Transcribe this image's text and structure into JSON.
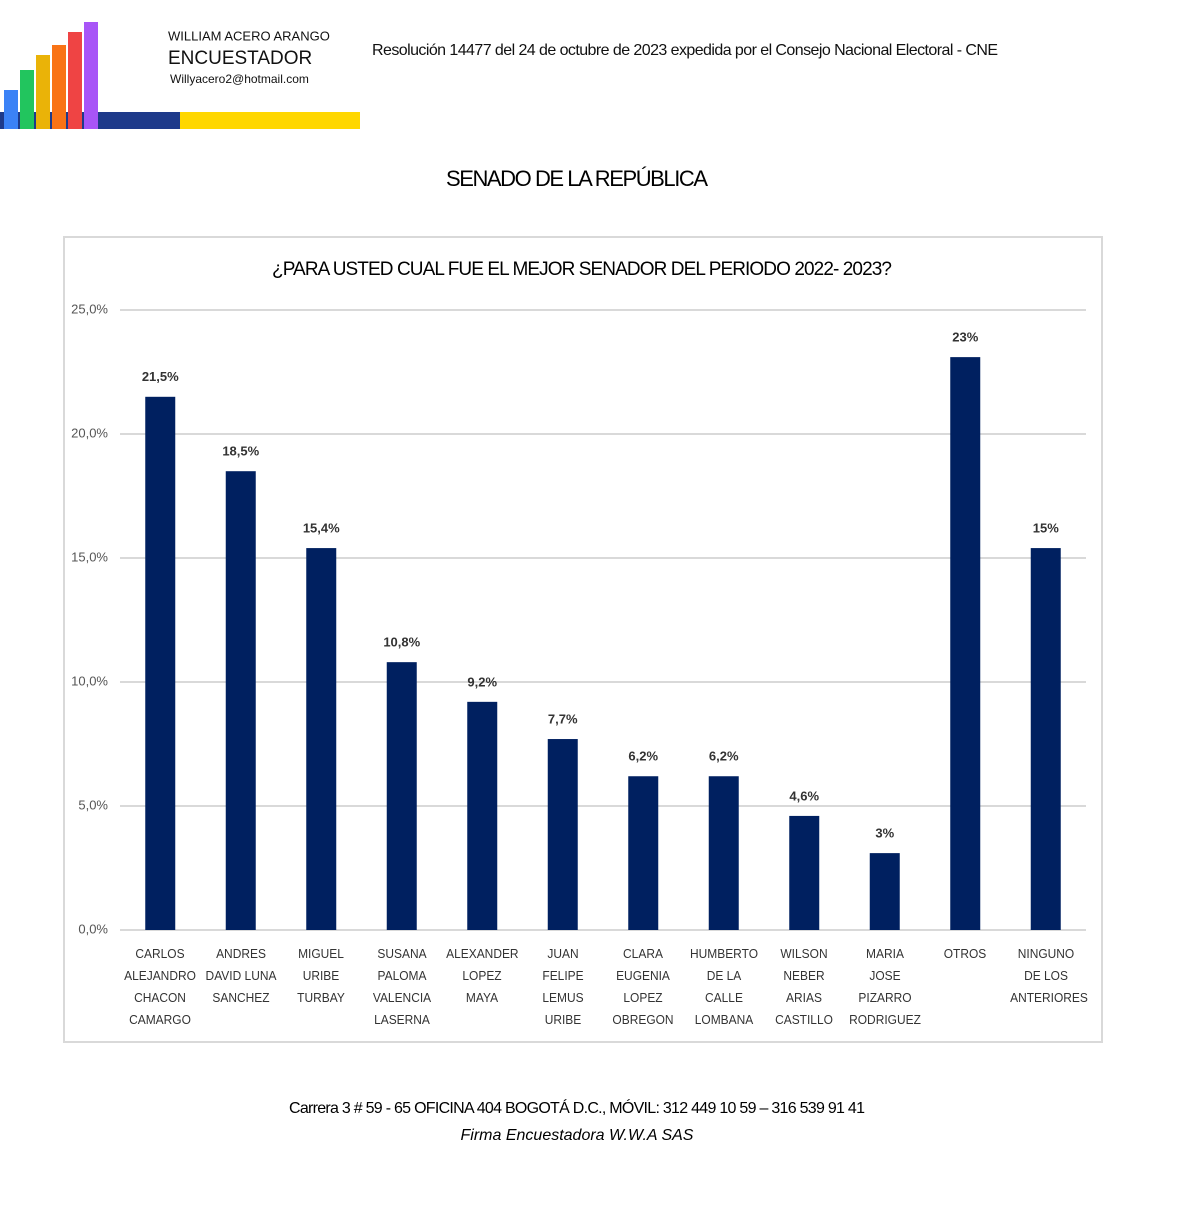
{
  "header": {
    "name": "WILLIAM ACERO ARANGO",
    "role": "ENCUESTADOR",
    "email": "Willyacero2@hotmail.com",
    "resolution": "Resolución 14477 del 24 de octubre de 2023 expedida por el Consejo Nacional Electoral - CNE"
  },
  "section_title": "SENADO DE LA REPÚBLICA",
  "chart_data": {
    "type": "bar",
    "title": "¿PARA USTED CUAL FUE EL MEJOR SENADOR DEL PERIODO 2022- 2023?",
    "categories": [
      "CARLOS ALEJANDRO CHACON CAMARGO",
      "ANDRES DAVID LUNA SANCHEZ",
      "MIGUEL URIBE TURBAY",
      "SUSANA PALOMA VALENCIA LASERNA",
      "ALEXANDER LOPEZ MAYA",
      "JUAN FELIPE LEMUS URIBE",
      "CLARA EUGENIA LOPEZ OBREGON",
      "HUMBERTO DE LA CALLE LOMBANA",
      "WILSON NEBER ARIAS CASTILLO",
      "MARIA JOSE PIZARRO RODRIGUEZ",
      "OTROS",
      "NINGUNO DE LOS ANTERIORES"
    ],
    "values": [
      21.5,
      18.5,
      15.4,
      10.8,
      9.2,
      7.7,
      6.2,
      6.2,
      4.6,
      3.1,
      23.1,
      15.4
    ],
    "value_labels": [
      "21,5%",
      "18,5%",
      "15,4%",
      "10,8%",
      "9,2%",
      "7,7%",
      "6,2%",
      "6,2%",
      "4,6%",
      "3%",
      "23%",
      "15%"
    ],
    "color": "#002060",
    "ylim": [
      0,
      25
    ],
    "yticks": [
      {
        "value": 0,
        "label": "0,0%"
      },
      {
        "value": 5,
        "label": "5,0%"
      },
      {
        "value": 10,
        "label": "10,0%"
      },
      {
        "value": 15,
        "label": "15,0%"
      },
      {
        "value": 20,
        "label": "20,0%"
      },
      {
        "value": 25,
        "label": "25,0%"
      }
    ],
    "grid": true
  },
  "footer": {
    "address": "Carrera 3 # 59 - 65 OFICINA  404 BOGOTÁ D.C., MÓVIL: 312 449 10 59 – 316 539 91 41",
    "firm": "Firma Encuestadora W.W.A SAS"
  }
}
